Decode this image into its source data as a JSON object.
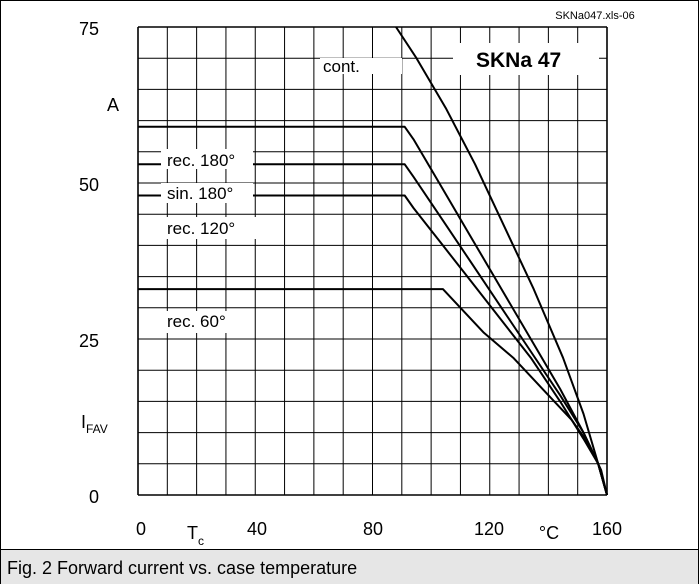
{
  "chart_data": {
    "type": "line",
    "title": "SKNa 47",
    "file_ref": "SKNa047.xls-06",
    "x_tick_labels": [
      "0",
      "40",
      "80",
      "120",
      "160"
    ],
    "x_label": "T",
    "x_label_sub": "c",
    "x_unit": "°C",
    "y_tick_labels": [
      "0",
      "25",
      "50",
      "75"
    ],
    "y_unit": "A",
    "y_label": "I",
    "y_label_sub": "FAV",
    "xlim": [
      0,
      160
    ],
    "ylim": [
      0,
      75
    ],
    "grid": true,
    "series": [
      {
        "name": "cont.",
        "points": [
          [
            88,
            75
          ],
          [
            95,
            70
          ],
          [
            105,
            62
          ],
          [
            115,
            53
          ],
          [
            125,
            43
          ],
          [
            135,
            33
          ],
          [
            145,
            22
          ],
          [
            152,
            13
          ],
          [
            157,
            5
          ],
          [
            160,
            0
          ]
        ]
      },
      {
        "name": "rec. 180°",
        "points": [
          [
            0,
            59
          ],
          [
            88,
            59
          ],
          [
            91,
            59
          ],
          [
            94,
            57
          ],
          [
            104,
            49
          ],
          [
            114,
            41
          ],
          [
            124,
            33
          ],
          [
            134,
            25
          ],
          [
            144,
            17
          ],
          [
            152,
            10
          ],
          [
            157,
            5
          ],
          [
            160,
            0
          ]
        ]
      },
      {
        "name": "sin. 180°",
        "points": [
          [
            0,
            53
          ],
          [
            88,
            53
          ],
          [
            91,
            53
          ],
          [
            94,
            51
          ],
          [
            104,
            44
          ],
          [
            114,
            37
          ],
          [
            124,
            30
          ],
          [
            134,
            23
          ],
          [
            144,
            16
          ],
          [
            152,
            10
          ],
          [
            157,
            5
          ],
          [
            160,
            0
          ]
        ]
      },
      {
        "name": "rec. 120°",
        "points": [
          [
            0,
            48
          ],
          [
            88,
            48
          ],
          [
            91,
            48
          ],
          [
            94,
            46
          ],
          [
            104,
            40
          ],
          [
            114,
            34
          ],
          [
            124,
            28
          ],
          [
            134,
            22
          ],
          [
            144,
            15
          ],
          [
            152,
            9
          ],
          [
            157,
            5
          ],
          [
            160,
            0
          ]
        ]
      },
      {
        "name": "rec. 60°",
        "points": [
          [
            0,
            33
          ],
          [
            102,
            33
          ],
          [
            104,
            33
          ],
          [
            108,
            31
          ],
          [
            118,
            26
          ],
          [
            128,
            22
          ],
          [
            138,
            17
          ],
          [
            148,
            12
          ],
          [
            154,
            8
          ],
          [
            158,
            4
          ],
          [
            160,
            0
          ]
        ]
      }
    ]
  },
  "caption": "Fig. 2 Forward current vs. case temperature"
}
